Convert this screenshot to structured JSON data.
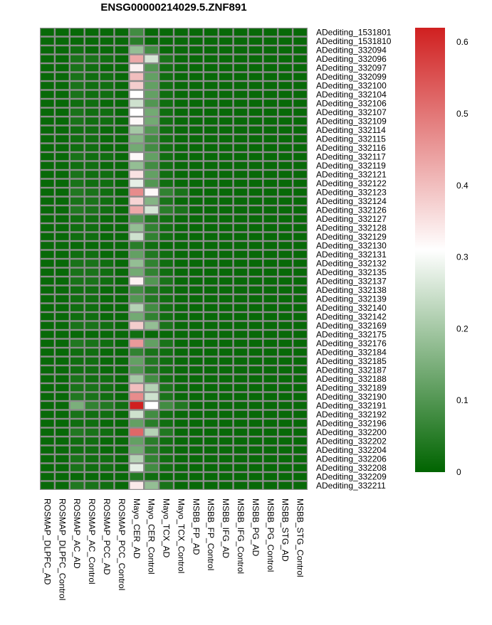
{
  "chart_data": {
    "type": "heatmap",
    "title": "ENSG00000214029.5.ZNF891",
    "columns": [
      "ROSMAP_DLPFC_AD",
      "ROSMAP_DLPFC_Control",
      "ROSMAP_AC_AD",
      "ROSMAP_AC_Control",
      "ROSMAP_PCC_AD",
      "ROSMAP_PCC_Control",
      "Mayo_CER_AD",
      "Mayo_CER_Control",
      "Mayo_TCX_AD",
      "Mayo_TCX_Control",
      "MSBB_FP_AD",
      "MSBB_FP_Control",
      "MSBB_IFG_AD",
      "MSBB_IFG_Control",
      "MSBB_PG_AD",
      "MSBB_PG_Control",
      "MSBB_STG_AD",
      "MSBB_STG_Control"
    ],
    "rows": [
      "ADediting_1531801",
      "ADediting_1531810",
      "ADediting_332094",
      "ADediting_332096",
      "ADediting_332097",
      "ADediting_332099",
      "ADediting_332100",
      "ADediting_332104",
      "ADediting_332106",
      "ADediting_332107",
      "ADediting_332109",
      "ADediting_332114",
      "ADediting_332115",
      "ADediting_332116",
      "ADediting_332117",
      "ADediting_332119",
      "ADediting_332121",
      "ADediting_332122",
      "ADediting_332123",
      "ADediting_332124",
      "ADediting_332126",
      "ADediting_332127",
      "ADediting_332128",
      "ADediting_332129",
      "ADediting_332130",
      "ADediting_332131",
      "ADediting_332132",
      "ADediting_332135",
      "ADediting_332137",
      "ADediting_332138",
      "ADediting_332139",
      "ADediting_332140",
      "ADediting_332142",
      "ADediting_332169",
      "ADediting_332175",
      "ADediting_332176",
      "ADediting_332184",
      "ADediting_332185",
      "ADediting_332187",
      "ADediting_332188",
      "ADediting_332189",
      "ADediting_332190",
      "ADediting_332191",
      "ADediting_332192",
      "ADediting_332196",
      "ADediting_332200",
      "ADediting_332202",
      "ADediting_332204",
      "ADediting_332206",
      "ADediting_332208",
      "ADediting_332209",
      "ADediting_332211"
    ],
    "values": [
      [
        0.01,
        0.01,
        0.01,
        0.01,
        0.01,
        0.01,
        0.08,
        0.01,
        0.01,
        0.01,
        0.01,
        0.01,
        0.01,
        0.01,
        0.01,
        0.01,
        0.01,
        0.01
      ],
      [
        0.01,
        0.01,
        0.01,
        0.01,
        0.01,
        0.01,
        0.05,
        0.01,
        0.01,
        0.01,
        0.01,
        0.01,
        0.01,
        0.01,
        0.01,
        0.01,
        0.01,
        0.01
      ],
      [
        0.01,
        0.01,
        0.02,
        0.01,
        0.01,
        0.01,
        0.18,
        0.08,
        0.01,
        0.01,
        0.01,
        0.01,
        0.01,
        0.01,
        0.01,
        0.01,
        0.01,
        0.01
      ],
      [
        0.01,
        0.01,
        0.03,
        0.03,
        0.02,
        0.01,
        0.43,
        0.26,
        0.03,
        0.01,
        0.01,
        0.01,
        0.01,
        0.01,
        0.01,
        0.01,
        0.01,
        0.01
      ],
      [
        0.01,
        0.01,
        0.03,
        0.02,
        0.01,
        0.01,
        0.33,
        0.1,
        0.02,
        0.01,
        0.01,
        0.01,
        0.01,
        0.01,
        0.01,
        0.01,
        0.01,
        0.01
      ],
      [
        0.01,
        0.01,
        0.03,
        0.02,
        0.02,
        0.01,
        0.4,
        0.12,
        0.02,
        0.01,
        0.01,
        0.01,
        0.01,
        0.01,
        0.01,
        0.01,
        0.01,
        0.01
      ],
      [
        0.01,
        0.01,
        0.03,
        0.02,
        0.02,
        0.01,
        0.38,
        0.12,
        0.02,
        0.01,
        0.01,
        0.01,
        0.01,
        0.01,
        0.01,
        0.01,
        0.01,
        0.01
      ],
      [
        0.01,
        0.01,
        0.03,
        0.02,
        0.02,
        0.01,
        0.31,
        0.12,
        0.02,
        0.01,
        0.01,
        0.01,
        0.01,
        0.01,
        0.01,
        0.01,
        0.01,
        0.01
      ],
      [
        0.01,
        0.01,
        0.02,
        0.02,
        0.01,
        0.01,
        0.25,
        0.1,
        0.02,
        0.01,
        0.01,
        0.01,
        0.01,
        0.01,
        0.01,
        0.01,
        0.01,
        0.01
      ],
      [
        0.01,
        0.01,
        0.03,
        0.02,
        0.02,
        0.01,
        0.31,
        0.14,
        0.02,
        0.01,
        0.01,
        0.01,
        0.01,
        0.01,
        0.01,
        0.01,
        0.01,
        0.01
      ],
      [
        0.01,
        0.01,
        0.03,
        0.02,
        0.02,
        0.01,
        0.32,
        0.14,
        0.02,
        0.01,
        0.01,
        0.01,
        0.01,
        0.01,
        0.01,
        0.01,
        0.01,
        0.01
      ],
      [
        0.01,
        0.01,
        0.02,
        0.02,
        0.01,
        0.01,
        0.2,
        0.1,
        0.02,
        0.01,
        0.01,
        0.01,
        0.01,
        0.01,
        0.01,
        0.01,
        0.01,
        0.01
      ],
      [
        0.01,
        0.01,
        0.02,
        0.02,
        0.01,
        0.01,
        0.16,
        0.08,
        0.02,
        0.01,
        0.01,
        0.01,
        0.01,
        0.01,
        0.01,
        0.01,
        0.01,
        0.01
      ],
      [
        0.01,
        0.01,
        0.02,
        0.02,
        0.01,
        0.01,
        0.14,
        0.08,
        0.02,
        0.01,
        0.01,
        0.01,
        0.01,
        0.01,
        0.01,
        0.01,
        0.01,
        0.01
      ],
      [
        0.01,
        0.01,
        0.03,
        0.02,
        0.02,
        0.01,
        0.32,
        0.12,
        0.02,
        0.01,
        0.01,
        0.01,
        0.01,
        0.01,
        0.01,
        0.01,
        0.01,
        0.01
      ],
      [
        0.01,
        0.01,
        0.02,
        0.02,
        0.01,
        0.01,
        0.18,
        0.08,
        0.02,
        0.01,
        0.01,
        0.01,
        0.01,
        0.01,
        0.01,
        0.01,
        0.01,
        0.01
      ],
      [
        0.01,
        0.01,
        0.03,
        0.02,
        0.02,
        0.01,
        0.35,
        0.12,
        0.02,
        0.01,
        0.01,
        0.01,
        0.01,
        0.01,
        0.01,
        0.01,
        0.01,
        0.01
      ],
      [
        0.01,
        0.01,
        0.03,
        0.02,
        0.02,
        0.01,
        0.28,
        0.1,
        0.02,
        0.01,
        0.01,
        0.01,
        0.01,
        0.01,
        0.01,
        0.01,
        0.01,
        0.01
      ],
      [
        0.01,
        0.01,
        0.04,
        0.03,
        0.02,
        0.01,
        0.47,
        0.32,
        0.06,
        0.03,
        0.01,
        0.01,
        0.01,
        0.01,
        0.01,
        0.01,
        0.01,
        0.01
      ],
      [
        0.01,
        0.01,
        0.03,
        0.03,
        0.02,
        0.01,
        0.37,
        0.16,
        0.03,
        0.01,
        0.01,
        0.01,
        0.01,
        0.01,
        0.01,
        0.01,
        0.01,
        0.01
      ],
      [
        0.01,
        0.01,
        0.04,
        0.03,
        0.02,
        0.01,
        0.43,
        0.26,
        0.05,
        0.03,
        0.01,
        0.01,
        0.01,
        0.01,
        0.01,
        0.01,
        0.01,
        0.01
      ],
      [
        0.01,
        0.01,
        0.02,
        0.02,
        0.01,
        0.01,
        0.1,
        0.04,
        0.02,
        0.01,
        0.01,
        0.01,
        0.01,
        0.01,
        0.01,
        0.01,
        0.01,
        0.01
      ],
      [
        0.01,
        0.01,
        0.02,
        0.02,
        0.01,
        0.01,
        0.18,
        0.06,
        0.02,
        0.01,
        0.01,
        0.01,
        0.01,
        0.01,
        0.01,
        0.01,
        0.01,
        0.01
      ],
      [
        0.01,
        0.01,
        0.02,
        0.02,
        0.01,
        0.01,
        0.25,
        0.06,
        0.02,
        0.01,
        0.01,
        0.01,
        0.01,
        0.01,
        0.01,
        0.01,
        0.01,
        0.01
      ],
      [
        0.01,
        0.01,
        0.01,
        0.01,
        0.01,
        0.01,
        0.05,
        0.02,
        0.01,
        0.01,
        0.01,
        0.01,
        0.01,
        0.01,
        0.01,
        0.01,
        0.01,
        0.01
      ],
      [
        0.01,
        0.01,
        0.02,
        0.02,
        0.01,
        0.01,
        0.12,
        0.04,
        0.02,
        0.01,
        0.01,
        0.01,
        0.01,
        0.01,
        0.01,
        0.01,
        0.01,
        0.01
      ],
      [
        0.01,
        0.01,
        0.03,
        0.03,
        0.02,
        0.01,
        0.18,
        0.06,
        0.02,
        0.01,
        0.01,
        0.01,
        0.01,
        0.01,
        0.01,
        0.01,
        0.01,
        0.01
      ],
      [
        0.01,
        0.01,
        0.03,
        0.03,
        0.02,
        0.01,
        0.14,
        0.06,
        0.02,
        0.01,
        0.01,
        0.01,
        0.01,
        0.01,
        0.01,
        0.01,
        0.01,
        0.01
      ],
      [
        0.01,
        0.01,
        0.03,
        0.03,
        0.02,
        0.01,
        0.33,
        0.1,
        0.03,
        0.01,
        0.01,
        0.01,
        0.01,
        0.01,
        0.01,
        0.01,
        0.01,
        0.01
      ],
      [
        0.01,
        0.01,
        0.02,
        0.02,
        0.01,
        0.01,
        0.08,
        0.04,
        0.02,
        0.01,
        0.01,
        0.01,
        0.01,
        0.01,
        0.01,
        0.01,
        0.01,
        0.01
      ],
      [
        0.01,
        0.01,
        0.02,
        0.02,
        0.01,
        0.01,
        0.1,
        0.04,
        0.02,
        0.01,
        0.01,
        0.01,
        0.01,
        0.01,
        0.01,
        0.01,
        0.01,
        0.01
      ],
      [
        0.01,
        0.01,
        0.02,
        0.02,
        0.01,
        0.01,
        0.22,
        0.08,
        0.02,
        0.01,
        0.01,
        0.01,
        0.01,
        0.01,
        0.01,
        0.01,
        0.01,
        0.01
      ],
      [
        0.01,
        0.01,
        0.02,
        0.02,
        0.01,
        0.01,
        0.14,
        0.06,
        0.02,
        0.01,
        0.01,
        0.01,
        0.01,
        0.01,
        0.01,
        0.01,
        0.01,
        0.01
      ],
      [
        0.01,
        0.01,
        0.03,
        0.03,
        0.02,
        0.01,
        0.38,
        0.18,
        0.03,
        0.01,
        0.01,
        0.01,
        0.01,
        0.01,
        0.01,
        0.01,
        0.01,
        0.01
      ],
      [
        0.01,
        0.01,
        0.01,
        0.01,
        0.01,
        0.01,
        0.02,
        0.01,
        0.01,
        0.01,
        0.01,
        0.01,
        0.01,
        0.01,
        0.01,
        0.01,
        0.01,
        0.01
      ],
      [
        0.01,
        0.01,
        0.04,
        0.03,
        0.02,
        0.01,
        0.45,
        0.12,
        0.03,
        0.01,
        0.01,
        0.01,
        0.01,
        0.01,
        0.01,
        0.01,
        0.01,
        0.01
      ],
      [
        0.01,
        0.01,
        0.02,
        0.02,
        0.01,
        0.01,
        0.06,
        0.03,
        0.02,
        0.01,
        0.01,
        0.01,
        0.01,
        0.01,
        0.01,
        0.01,
        0.01,
        0.01
      ],
      [
        0.01,
        0.01,
        0.02,
        0.02,
        0.01,
        0.01,
        0.12,
        0.04,
        0.02,
        0.01,
        0.01,
        0.01,
        0.01,
        0.01,
        0.01,
        0.01,
        0.01,
        0.01
      ],
      [
        0.01,
        0.01,
        0.02,
        0.02,
        0.01,
        0.01,
        0.1,
        0.04,
        0.02,
        0.01,
        0.01,
        0.01,
        0.01,
        0.01,
        0.01,
        0.01,
        0.01,
        0.01
      ],
      [
        0.01,
        0.01,
        0.03,
        0.02,
        0.02,
        0.01,
        0.2,
        0.08,
        0.02,
        0.01,
        0.01,
        0.01,
        0.01,
        0.01,
        0.01,
        0.01,
        0.01,
        0.01
      ],
      [
        0.01,
        0.01,
        0.03,
        0.03,
        0.02,
        0.01,
        0.4,
        0.22,
        0.03,
        0.01,
        0.01,
        0.01,
        0.01,
        0.01,
        0.01,
        0.01,
        0.01,
        0.01
      ],
      [
        0.01,
        0.01,
        0.04,
        0.03,
        0.02,
        0.01,
        0.47,
        0.25,
        0.03,
        0.01,
        0.01,
        0.01,
        0.01,
        0.01,
        0.01,
        0.01,
        0.01,
        0.01
      ],
      [
        0.01,
        0.01,
        0.15,
        0.06,
        0.04,
        0.02,
        0.62,
        0.31,
        0.08,
        0.04,
        0.01,
        0.01,
        0.01,
        0.01,
        0.01,
        0.01,
        0.01,
        0.01
      ],
      [
        0.01,
        0.01,
        0.03,
        0.02,
        0.02,
        0.01,
        0.25,
        0.08,
        0.02,
        0.01,
        0.01,
        0.01,
        0.01,
        0.01,
        0.01,
        0.01,
        0.01,
        0.01
      ],
      [
        0.01,
        0.01,
        0.02,
        0.02,
        0.01,
        0.01,
        0.12,
        0.05,
        0.02,
        0.01,
        0.01,
        0.01,
        0.01,
        0.01,
        0.01,
        0.01,
        0.01,
        0.01
      ],
      [
        0.01,
        0.01,
        0.04,
        0.03,
        0.02,
        0.01,
        0.52,
        0.22,
        0.04,
        0.01,
        0.01,
        0.01,
        0.01,
        0.01,
        0.01,
        0.01,
        0.01,
        0.01
      ],
      [
        0.01,
        0.01,
        0.02,
        0.02,
        0.01,
        0.01,
        0.12,
        0.05,
        0.02,
        0.01,
        0.01,
        0.01,
        0.01,
        0.01,
        0.01,
        0.01,
        0.01,
        0.01
      ],
      [
        0.01,
        0.01,
        0.02,
        0.02,
        0.01,
        0.01,
        0.14,
        0.05,
        0.02,
        0.01,
        0.01,
        0.01,
        0.01,
        0.01,
        0.01,
        0.01,
        0.01,
        0.01
      ],
      [
        0.01,
        0.01,
        0.03,
        0.02,
        0.02,
        0.01,
        0.22,
        0.06,
        0.02,
        0.01,
        0.01,
        0.01,
        0.01,
        0.01,
        0.01,
        0.01,
        0.01,
        0.01
      ],
      [
        0.01,
        0.01,
        0.03,
        0.02,
        0.02,
        0.01,
        0.28,
        0.08,
        0.02,
        0.01,
        0.01,
        0.01,
        0.01,
        0.01,
        0.01,
        0.01,
        0.01,
        0.01
      ],
      [
        0.01,
        0.01,
        0.01,
        0.01,
        0.01,
        0.01,
        0.04,
        0.02,
        0.01,
        0.01,
        0.01,
        0.01,
        0.01,
        0.01,
        0.01,
        0.01,
        0.01,
        0.01
      ],
      [
        0.01,
        0.01,
        0.04,
        0.03,
        0.02,
        0.01,
        0.34,
        0.18,
        0.03,
        0.01,
        0.01,
        0.01,
        0.01,
        0.01,
        0.01,
        0.01,
        0.01,
        0.01
      ]
    ],
    "color_scale": {
      "min": 0,
      "mid": 0.31,
      "max": 0.62,
      "low_color": "#006400",
      "mid_color": "#ffffff",
      "high_color": "#d02020"
    },
    "legend": {
      "position": "right",
      "ticks": [
        0,
        0.1,
        0.2,
        0.3,
        0.4,
        0.5,
        0.6
      ],
      "tick_labels": [
        "0",
        "0.1",
        "0.2",
        "0.3",
        "0.4",
        "0.5",
        "0.6"
      ]
    },
    "cell_border_color": "#8c8c8c"
  }
}
